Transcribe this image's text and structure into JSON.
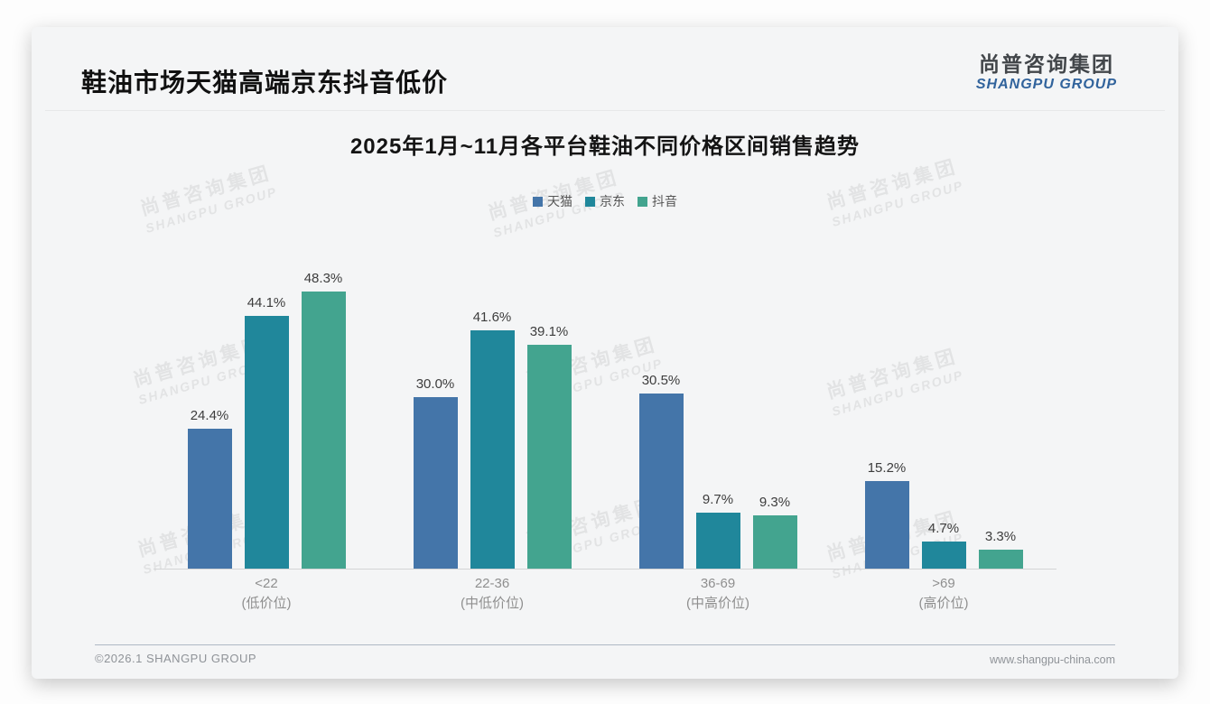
{
  "page": {
    "title": "鞋油市场天猫高端京东抖音低价",
    "logo": {
      "cn": "尚普咨询集团",
      "en": "SHANGPU GROUP"
    },
    "watermark": {
      "cn": "尚普咨询集团",
      "en": "SHANGPU GROUP"
    },
    "footer": {
      "copyright": "©2026.1 SHANGPU GROUP",
      "website": "www.shangpu-china.com"
    }
  },
  "chart_data": {
    "type": "bar",
    "title": "2025年1月~11月各平台鞋油不同价格区间销售趋势",
    "categories": [
      {
        "range": "<22",
        "tier": "(低价位)"
      },
      {
        "range": "22-36",
        "tier": "(中低价位)"
      },
      {
        "range": "36-69",
        "tier": "(中高价位)"
      },
      {
        "range": ">69",
        "tier": "(高价位)"
      }
    ],
    "series": [
      {
        "name": "天猫",
        "color": "#4475a9",
        "values": [
          24.4,
          30.0,
          30.5,
          15.2
        ]
      },
      {
        "name": "京东",
        "color": "#20879b",
        "values": [
          44.1,
          41.6,
          9.7,
          4.7
        ]
      },
      {
        "name": "抖音",
        "color": "#43a48f",
        "values": [
          48.3,
          39.1,
          9.3,
          3.3
        ]
      }
    ],
    "value_suffix": "%",
    "value_decimals": 1,
    "ylim": [
      0,
      55
    ],
    "legend_position": "top",
    "grid": false,
    "xlabel": "",
    "ylabel": ""
  }
}
